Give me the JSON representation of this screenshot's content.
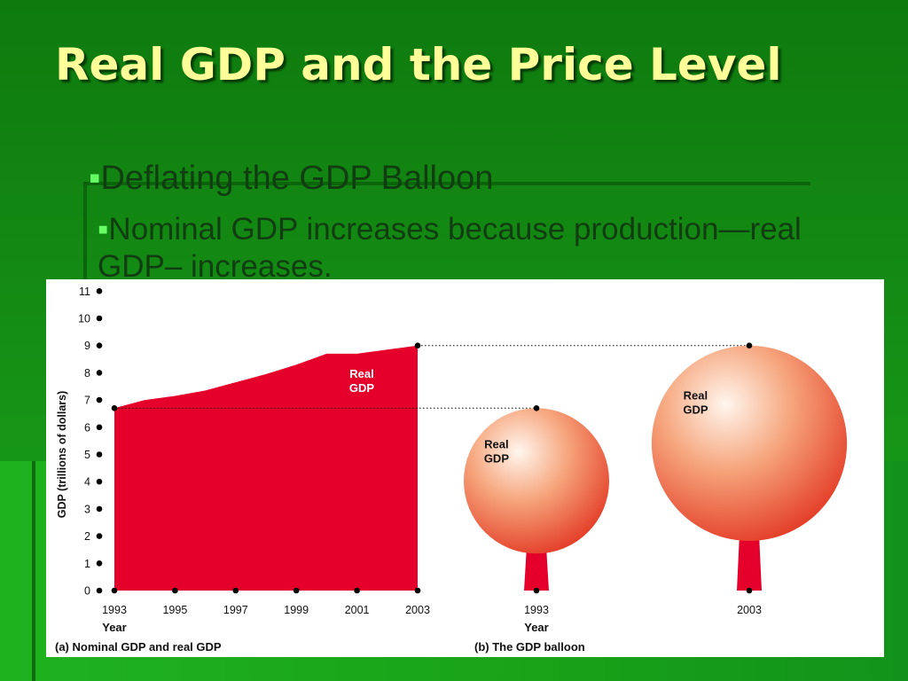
{
  "slide": {
    "title": "Real GDP and the Price Level",
    "bullet_1": "Deflating the GDP Balloon",
    "bullet_2": "Nominal GDP increases because production—real GDP– increases."
  },
  "colors": {
    "background": "#148c14",
    "title": "#ffff99",
    "bullet_marker": "#66ff66",
    "area_fill": "#e4002b",
    "balloon_fill": "#e8452a"
  },
  "chart_data": [
    {
      "type": "area",
      "panel_label": "(a) Nominal GDP and real GDP",
      "area_label": "Real\nGDP",
      "xlabel": "Year",
      "ylabel": "GDP (trillions of dollars)",
      "x": [
        1993,
        1994,
        1995,
        1996,
        1997,
        1998,
        1999,
        2000,
        2001,
        2002,
        2003
      ],
      "values": [
        6.7,
        7.0,
        7.15,
        7.35,
        7.65,
        7.95,
        8.3,
        8.7,
        8.7,
        8.85,
        9.0
      ],
      "x_ticks": [
        "1993",
        "1995",
        "1997",
        "1999",
        "2001",
        "2003"
      ],
      "y_ticks": [
        "0",
        "1",
        "2",
        "3",
        "4",
        "5",
        "6",
        "7",
        "8",
        "9",
        "10",
        "11"
      ],
      "ylim": [
        0,
        11
      ],
      "xlim": [
        1993,
        2003
      ],
      "grid": false
    },
    {
      "type": "other",
      "panel_label": "(b) The GDP balloon",
      "xlabel": "Year",
      "balloons": [
        {
          "year": "1993",
          "label": "Real\nGDP",
          "value": 6.7
        },
        {
          "year": "2003",
          "label": "Real\nGDP",
          "value": 9.0
        }
      ]
    }
  ]
}
